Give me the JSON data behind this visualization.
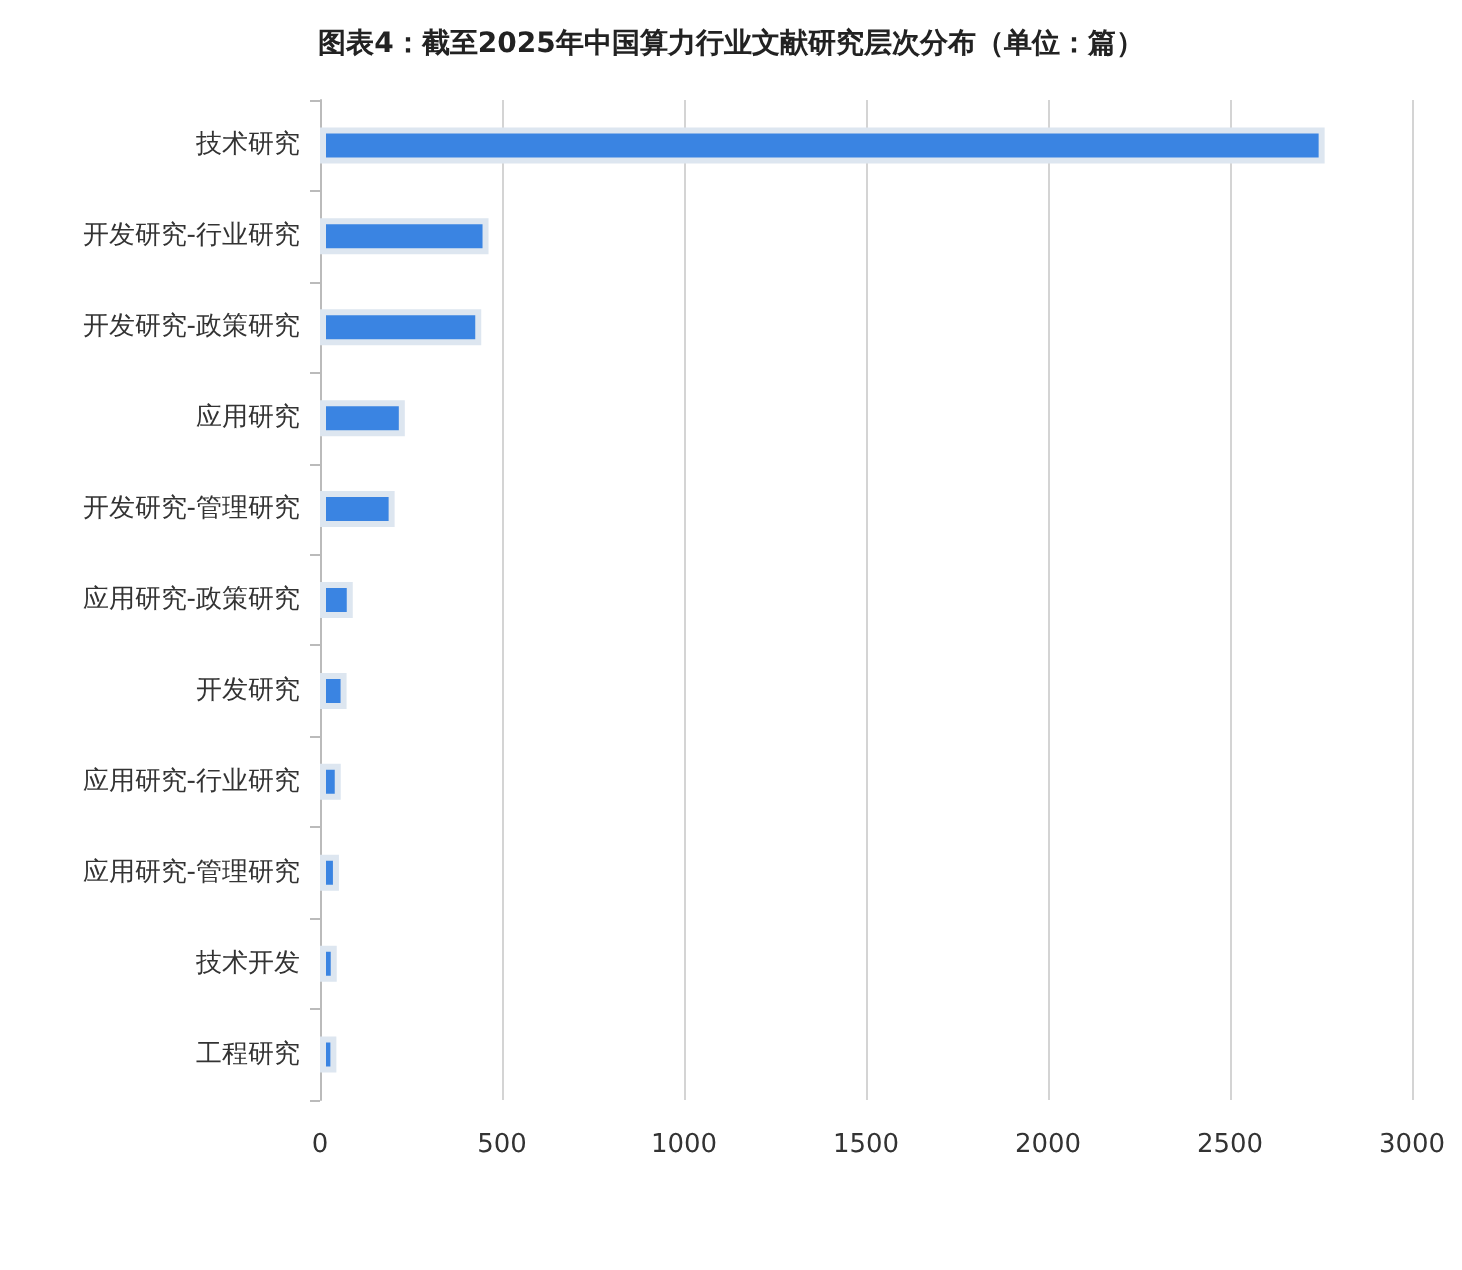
{
  "chart_data": {
    "type": "bar",
    "orientation": "horizontal",
    "title": "图表4：截至2025年中国算力行业文献研究层次分布（单位：篇）",
    "categories": [
      "技术研究",
      "开发研究-行业研究",
      "开发研究-政策研究",
      "应用研究",
      "开发研究-管理研究",
      "应用研究-政策研究",
      "开发研究",
      "应用研究-行业研究",
      "应用研究-管理研究",
      "技术开发",
      "工程研究"
    ],
    "values": [
      2760,
      463,
      443,
      233,
      205,
      90,
      73,
      57,
      52,
      46,
      45
    ],
    "color": "#3a84e2",
    "xlim": [
      0,
      3000
    ],
    "xticks": [
      0,
      500,
      1000,
      1500,
      2000,
      2500,
      3000
    ],
    "grid": "x"
  }
}
